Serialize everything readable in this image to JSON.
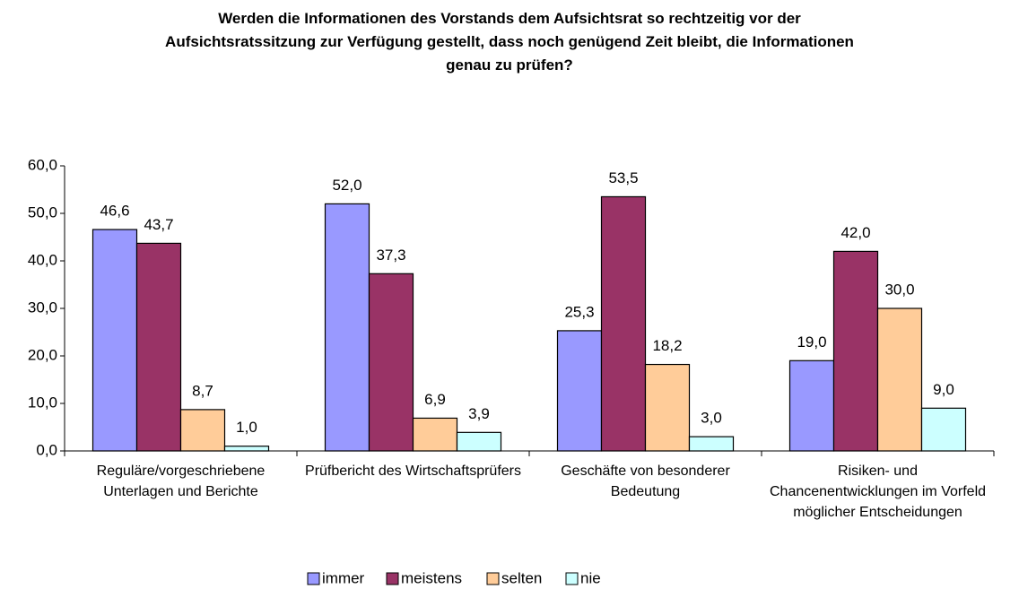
{
  "chart_data": {
    "type": "bar",
    "title": "Werden die Informationen des Vorstands dem Aufsichtsrat so rechtzeitig vor der Aufsichtsratssitzung zur Verfügung gestellt, dass noch genügend Zeit bleibt, die Informationen genau zu prüfen?",
    "categories": [
      "Reguläre/vorgeschriebene Unterlagen und Berichte",
      "Prüfbericht des Wirtschaftsprüfers",
      "Geschäfte von besonderer Bedeutung",
      "Risiken- und Chancenentwicklungen im Vorfeld möglicher Entscheidungen"
    ],
    "series": [
      {
        "name": "immer",
        "color": "#9999ff",
        "values": [
          46.6,
          52.0,
          25.3,
          19.0
        ],
        "value_labels": [
          "46,6",
          "52,0",
          "25,3",
          "19,0"
        ]
      },
      {
        "name": "meistens",
        "color": "#993366",
        "values": [
          43.7,
          37.3,
          53.5,
          42.0
        ],
        "value_labels": [
          "43,7",
          "37,3",
          "53,5",
          "42,0"
        ]
      },
      {
        "name": "selten",
        "color": "#ffcc99",
        "values": [
          8.7,
          6.9,
          18.2,
          30.0
        ],
        "value_labels": [
          "8,7",
          "6,9",
          "18,2",
          "30,0"
        ]
      },
      {
        "name": "nie",
        "color": "#ccffff",
        "values": [
          1.0,
          3.9,
          3.0,
          9.0
        ],
        "value_labels": [
          "1,0",
          "3,9",
          "3,0",
          "9,0"
        ]
      }
    ],
    "ylim": [
      0,
      60
    ],
    "yticks": [
      {
        "value": 0,
        "label": "0,0"
      },
      {
        "value": 10,
        "label": "10,0"
      },
      {
        "value": 20,
        "label": "20,0"
      },
      {
        "value": 30,
        "label": "30,0"
      },
      {
        "value": 40,
        "label": "40,0"
      },
      {
        "value": 50,
        "label": "50,0"
      },
      {
        "value": 60,
        "label": "60,0"
      }
    ],
    "legend": "bottom"
  }
}
